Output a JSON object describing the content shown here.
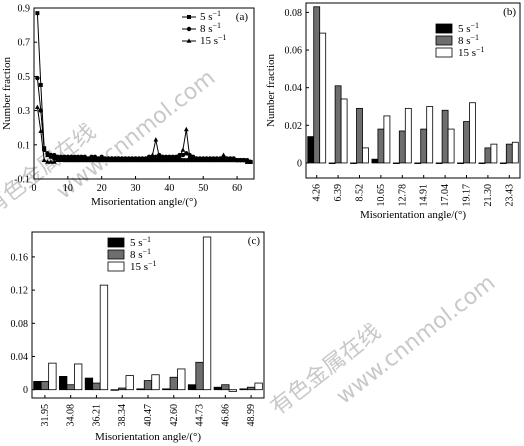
{
  "watermark": [
    "有色金属在线",
    "www.cnnmol.com"
  ],
  "chart_data": [
    {
      "id": "a",
      "panel_label": "(a)",
      "type": "line",
      "xlabel": "Misorientation angle/(°)",
      "ylabel": "Number fraction",
      "xlim": [
        0,
        65
      ],
      "ylim": [
        -0.1,
        0.9
      ],
      "xticks": [
        0,
        10,
        20,
        30,
        40,
        50,
        60
      ],
      "yticks": [
        -0.1,
        0.1,
        0.3,
        0.5,
        0.7,
        0.9
      ],
      "legend": "top-right",
      "x": [
        1,
        2,
        3,
        4,
        5,
        6,
        7,
        8,
        9,
        10,
        11,
        12,
        13,
        14,
        15,
        16,
        17,
        18,
        19,
        20,
        21,
        22,
        23,
        24,
        25,
        26,
        27,
        28,
        29,
        30,
        31,
        32,
        33,
        34,
        35,
        36,
        37,
        38,
        39,
        40,
        41,
        42,
        43,
        44,
        45,
        46,
        47,
        48,
        49,
        50,
        51,
        52,
        53,
        54,
        55,
        56,
        57,
        58,
        59,
        60,
        61,
        62,
        63,
        64
      ],
      "series": [
        {
          "name": "5 s",
          "name_sup": "−1",
          "marker": "square",
          "values": [
            0.87,
            0.45,
            0.08,
            0.04,
            0.03,
            0.02,
            0.02,
            0.02,
            0.01,
            0.01,
            0.01,
            0.01,
            0.01,
            0.01,
            0.01,
            0.01,
            0.01,
            0.01,
            0.01,
            0.01,
            0.01,
            0.01,
            0.01,
            0.01,
            0.01,
            0.01,
            0.01,
            0.01,
            0.01,
            0.01,
            0.01,
            0.01,
            0.01,
            0.01,
            0.01,
            0.01,
            0.01,
            0.01,
            0.01,
            0.01,
            0.01,
            0.01,
            0.01,
            0.01,
            0.01,
            0.01,
            0.01,
            0.01,
            0.01,
            0.01,
            0.01,
            0.01,
            0.01,
            0.01,
            0.01,
            0.01,
            0.01,
            0.01,
            0.01,
            0.01,
            0.01,
            0.01,
            0.0,
            0.0
          ]
        },
        {
          "name": "8 s",
          "name_sup": "−1",
          "marker": "circle",
          "values": [
            0.49,
            0.3,
            0.07,
            0.05,
            0.04,
            0.04,
            0.03,
            0.03,
            0.03,
            0.03,
            0.03,
            0.03,
            0.03,
            0.03,
            0.03,
            0.02,
            0.03,
            0.03,
            0.02,
            0.03,
            0.02,
            0.02,
            0.02,
            0.02,
            0.02,
            0.02,
            0.02,
            0.02,
            0.02,
            0.02,
            0.02,
            0.02,
            0.02,
            0.03,
            0.03,
            0.03,
            0.04,
            0.03,
            0.03,
            0.03,
            0.03,
            0.03,
            0.04,
            0.04,
            0.05,
            0.04,
            0.03,
            0.02,
            0.02,
            0.02,
            0.02,
            0.02,
            0.02,
            0.02,
            0.02,
            0.03,
            0.02,
            0.02,
            0.02,
            0.01,
            0.01,
            0.01,
            0.01,
            0.0
          ]
        },
        {
          "name": "15 s",
          "name_sup": "−1",
          "marker": "triangle",
          "values": [
            0.32,
            0.18,
            0.01,
            0.0,
            0.0,
            0.0,
            0.01,
            0.01,
            0.01,
            0.01,
            0.01,
            0.01,
            0.01,
            0.01,
            0.01,
            0.01,
            0.01,
            0.01,
            0.01,
            0.01,
            0.01,
            0.01,
            0.01,
            0.01,
            0.01,
            0.01,
            0.01,
            0.01,
            0.01,
            0.01,
            0.01,
            0.01,
            0.01,
            0.01,
            0.04,
            0.13,
            0.03,
            0.01,
            0.01,
            0.01,
            0.01,
            0.01,
            0.03,
            0.07,
            0.19,
            0.03,
            0.01,
            0.01,
            0.01,
            0.01,
            0.01,
            0.01,
            0.01,
            0.01,
            0.01,
            0.04,
            0.01,
            0.01,
            0.01,
            0.01,
            0.01,
            0.01,
            0.0,
            0.0
          ]
        }
      ]
    },
    {
      "id": "b",
      "panel_label": "(b)",
      "type": "bar",
      "xlabel": "Misorientation angle/(°)",
      "ylabel": "Number fraction",
      "ylim": [
        -0.008,
        0.085
      ],
      "yticks": [
        0,
        0.02,
        0.04,
        0.06,
        0.08
      ],
      "ytick_labels": [
        "0",
        "0.02",
        "0.04",
        "0.06",
        "0.08"
      ],
      "legend": "top-right",
      "categories": [
        "4.26",
        "6.39",
        "8.52",
        "10.65",
        "12.78",
        "14.91",
        "17.04",
        "19.17",
        "21.30",
        "23.43"
      ],
      "series": [
        {
          "name": "5 s",
          "name_sup": "−1",
          "color": "#000000",
          "values": [
            0.014,
            0.0,
            0.0,
            0.002,
            0.0,
            0.0,
            0.0,
            0.0,
            0.0,
            0.0
          ]
        },
        {
          "name": "8 s",
          "name_sup": "−1",
          "color": "#6e6e6e",
          "values": [
            0.083,
            0.041,
            0.029,
            0.018,
            0.017,
            0.018,
            0.028,
            0.022,
            0.008,
            0.01
          ]
        },
        {
          "name": "15 s",
          "name_sup": "−1",
          "color": "#ffffff",
          "values": [
            0.069,
            0.034,
            0.008,
            0.025,
            0.029,
            0.03,
            0.018,
            0.032,
            0.01,
            0.011
          ]
        }
      ]
    },
    {
      "id": "c",
      "panel_label": "(c)",
      "type": "bar",
      "xlabel": "Misorientation angle/(°)",
      "ylabel": "Number fraction",
      "ylim": [
        -0.01,
        0.19
      ],
      "yticks": [
        0,
        0.04,
        0.08,
        0.12,
        0.16
      ],
      "ytick_labels": [
        "0",
        "0.04",
        "0.08",
        "0.12",
        "0.16"
      ],
      "legend": "top-center",
      "categories": [
        "31.95",
        "34.08",
        "36.21",
        "38.34",
        "40.47",
        "42.60",
        "44.73",
        "46.86",
        "48.99"
      ],
      "series": [
        {
          "name": "5 s",
          "name_sup": "−1",
          "color": "#000000",
          "values": [
            0.01,
            0.016,
            0.014,
            0.0,
            0.001,
            0.001,
            0.006,
            0.003,
            0.001
          ]
        },
        {
          "name": "8 s",
          "name_sup": "−1",
          "color": "#6e6e6e",
          "values": [
            0.01,
            0.006,
            0.008,
            0.002,
            0.011,
            0.015,
            0.033,
            0.006,
            0.003
          ]
        },
        {
          "name": "15 s",
          "name_sup": "−1",
          "color": "#ffffff",
          "values": [
            0.032,
            0.031,
            0.126,
            0.017,
            0.018,
            0.025,
            0.184,
            -0.002,
            0.008
          ]
        }
      ]
    }
  ]
}
